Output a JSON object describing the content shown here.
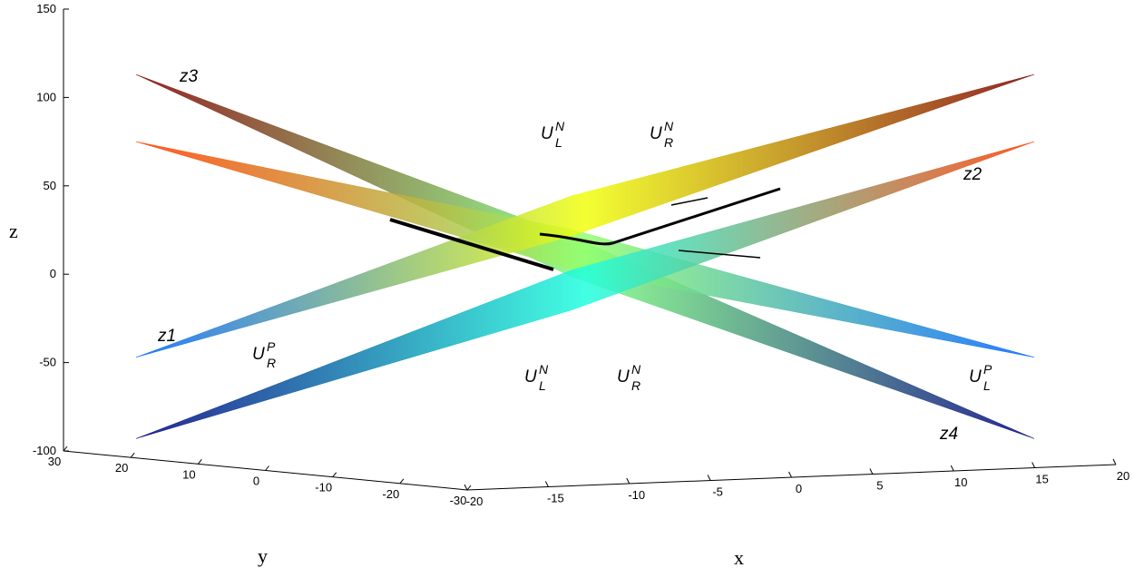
{
  "chart_data": {
    "type": "surface3d",
    "xlabel": "x",
    "ylabel": "y",
    "zlabel": "z",
    "xlim": [
      -20,
      20
    ],
    "xticks": [
      -20,
      -15,
      -10,
      -5,
      0,
      5,
      10,
      15,
      20
    ],
    "ylim": [
      30,
      -30
    ],
    "yticks": [
      30,
      20,
      10,
      0,
      -10,
      -20,
      -30
    ],
    "zlim": [
      -100,
      150
    ],
    "zticks": [
      -100,
      -50,
      0,
      50,
      100,
      150
    ],
    "surfaces": [
      {
        "z": [
          113,
          -93
        ]
      },
      {
        "z": [
          75,
          -47
        ]
      },
      {
        "z": [
          -47,
          113
        ]
      },
      {
        "z": [
          -93,
          75
        ]
      }
    ],
    "annotations": [
      {
        "base": "z3"
      },
      {
        "base": "z2"
      },
      {
        "base": "z1"
      },
      {
        "base": "z4"
      },
      {
        "base": "U",
        "sup": "N",
        "sub": "L"
      },
      {
        "base": "U",
        "sup": "N",
        "sub": "R"
      },
      {
        "base": "U",
        "sup": "N",
        "sub": "L"
      },
      {
        "base": "U",
        "sup": "N",
        "sub": "R"
      },
      {
        "base": "U",
        "sup": "P",
        "sub": "R"
      },
      {
        "base": "U",
        "sup": "P",
        "sub": "L"
      }
    ]
  }
}
